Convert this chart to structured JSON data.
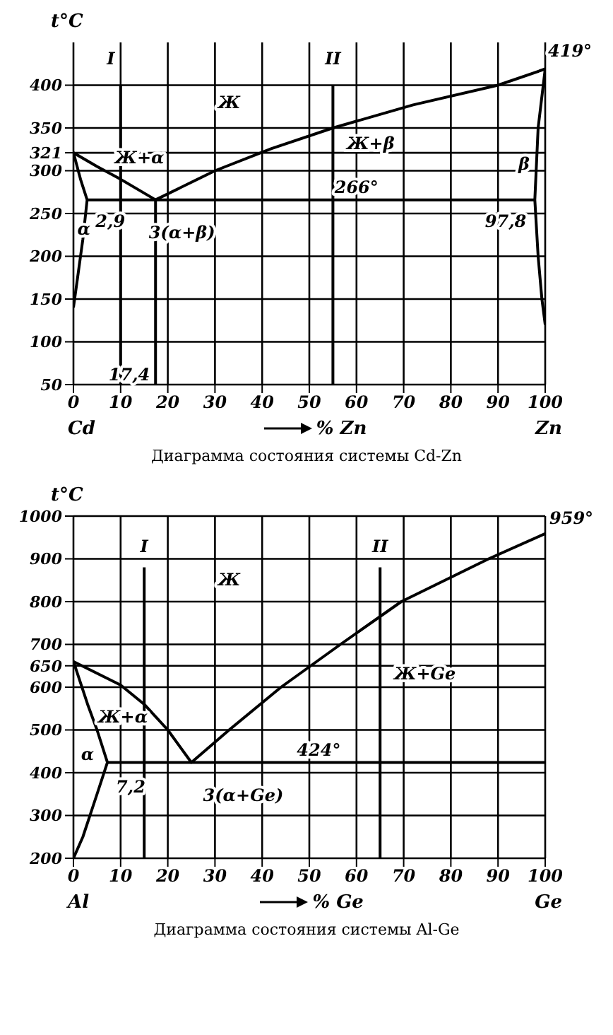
{
  "chart_data": [
    {
      "type": "line",
      "title": "Диаграмма состояния системы Cd-Zn",
      "ylabel": "t°C",
      "xlabel": "% Zn",
      "xlim": [
        0,
        100
      ],
      "ylim": [
        50,
        450
      ],
      "xticks": [
        0,
        10,
        20,
        30,
        40,
        50,
        60,
        70,
        80,
        90,
        100
      ],
      "yticks": [
        50,
        100,
        150,
        200,
        250,
        300,
        321,
        350,
        400
      ],
      "grid": true,
      "series": [
        {
          "color": "#000000",
          "x": [
            0,
            5,
            10,
            17.4,
            30,
            42,
            55,
            72,
            90,
            100
          ],
          "values": [
            321,
            305,
            290,
            266,
            300,
            326,
            350,
            377,
            400,
            419
          ]
        },
        {
          "color": "#000000",
          "x": [
            0,
            1.5,
            2.9,
            2,
            1,
            0
          ],
          "values": [
            321,
            290,
            266,
            220,
            180,
            140
          ]
        },
        {
          "color": "#000000",
          "x": [
            2.9,
            97.8
          ],
          "values": [
            266,
            266
          ]
        },
        {
          "color": "#000000",
          "x": [
            100,
            98.5,
            97.8,
            98.5,
            99.3,
            100
          ],
          "values": [
            419,
            350,
            266,
            200,
            150,
            120
          ]
        },
        {
          "color": "#000000",
          "x": [
            10,
            10
          ],
          "values": [
            400,
            50
          ]
        },
        {
          "color": "#000000",
          "x": [
            17.4,
            17.4
          ],
          "values": [
            266,
            50
          ]
        },
        {
          "color": "#000000",
          "x": [
            55,
            55
          ],
          "values": [
            400,
            50
          ]
        }
      ],
      "annotations": [
        {
          "text": "I",
          "x": 10,
          "y": 400
        },
        {
          "text": "II",
          "x": 55,
          "y": 400
        },
        {
          "text": "419°",
          "x": 100,
          "y": 419
        },
        {
          "text": "2,9",
          "x": 2.9,
          "y": 266
        },
        {
          "text": "17,4",
          "x": 17.4,
          "y": 50
        },
        {
          "text": "266°",
          "x": 60,
          "y": 266
        },
        {
          "text": "97,8",
          "x": 97.8,
          "y": 266
        },
        "Cd",
        "Zn",
        "Ж",
        "Ж+α",
        "Ж+β",
        "α",
        "3(α+β)",
        "β"
      ]
    },
    {
      "type": "line",
      "title": "Диаграмма состояния системы Al-Ge",
      "ylabel": "t°C",
      "xlabel": "% Ge",
      "xlim": [
        0,
        100
      ],
      "ylim": [
        200,
        1000
      ],
      "xticks": [
        0,
        10,
        20,
        30,
        40,
        50,
        60,
        70,
        80,
        90,
        100
      ],
      "yticks": [
        200,
        300,
        400,
        500,
        600,
        650,
        700,
        800,
        900,
        1000
      ],
      "grid": true,
      "series": [
        {
          "color": "#000000",
          "x": [
            0,
            10,
            15,
            20,
            25,
            33,
            44,
            56.6,
            69.5,
            88,
            100
          ],
          "values": [
            660,
            605,
            560,
            500,
            424,
            500,
            600,
            700,
            800,
            900,
            959
          ]
        },
        {
          "color": "#000000",
          "x": [
            0,
            3,
            5,
            7.2,
            5,
            2,
            0
          ],
          "values": [
            660,
            560,
            500,
            424,
            350,
            250,
            200
          ]
        },
        {
          "color": "#000000",
          "x": [
            7.2,
            100
          ],
          "values": [
            424,
            424
          ]
        },
        {
          "color": "#000000",
          "x": [
            15,
            15
          ],
          "values": [
            880,
            200
          ]
        },
        {
          "color": "#000000",
          "x": [
            65,
            65
          ],
          "values": [
            880,
            200
          ]
        }
      ],
      "annotations": [
        {
          "text": "I",
          "x": 15,
          "y": 880
        },
        {
          "text": "II",
          "x": 65,
          "y": 880
        },
        {
          "text": "959°",
          "x": 100,
          "y": 959
        },
        {
          "text": "7,2",
          "x": 7.2,
          "y": 424
        },
        {
          "text": "424°",
          "x": 52,
          "y": 424
        },
        "Al",
        "Ge",
        "Ж",
        "Ж+Ge",
        "Ж+α",
        "α",
        "3(α+Ge)"
      ]
    }
  ]
}
